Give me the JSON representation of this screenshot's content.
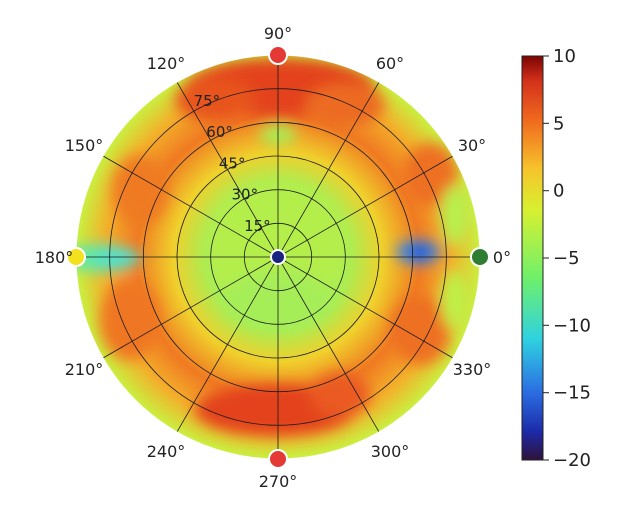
{
  "chart_data": {
    "type": "heatmap",
    "projection": "polar",
    "title": "",
    "angular_ticks": [
      "0°",
      "30°",
      "60°",
      "90°",
      "120°",
      "150°",
      "180°",
      "210°",
      "240°",
      "270°",
      "300°",
      "330°"
    ],
    "radial_ticks": [
      "15°",
      "30°",
      "45°",
      "60°",
      "75°"
    ],
    "colorbar": {
      "min": -20,
      "max": 10,
      "ticks": [
        "10",
        "5",
        "0",
        "−5",
        "−10",
        "−15",
        "−20"
      ],
      "tick_values": [
        10,
        5,
        0,
        -5,
        -10,
        -15,
        -20
      ],
      "colormap": "turbo"
    },
    "grid": true,
    "markers": [
      {
        "angle_deg": 0,
        "elevation_deg": 90,
        "color": "#2e7d32"
      },
      {
        "angle_deg": 90,
        "elevation_deg": 90,
        "color": "#e53935"
      },
      {
        "angle_deg": 180,
        "elevation_deg": 90,
        "color": "#f2e11c"
      },
      {
        "angle_deg": 270,
        "elevation_deg": 90,
        "color": "#e53935"
      },
      {
        "angle_deg": 0,
        "elevation_deg": 0,
        "color": "#1a237e"
      }
    ],
    "field_description_values": {
      "center": -4,
      "inner_ring": -3,
      "mid_ring_top": 6,
      "outer_ring": 2,
      "edge_left": -9,
      "edge_right_blue_patch": -14
    }
  }
}
